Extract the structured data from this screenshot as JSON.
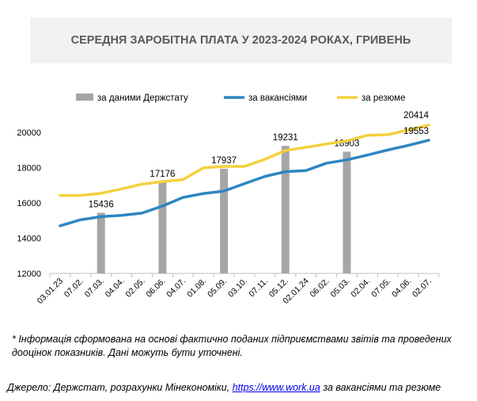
{
  "chart_data": {
    "type": "bar+line",
    "title": "СЕРЕДНЯ ЗАРОБІТНА ПЛАТА У 2023-2024 РОКАХ, ГРИВЕНЬ",
    "categories": [
      "03.01.23",
      "07.02.",
      "07.03.",
      "04.04.",
      "02.05.",
      "06.06.",
      "04.07.",
      "01.08.",
      "05.09.",
      "03.10.",
      "07.11.",
      "05.12.",
      "02.01.24",
      "06.02.",
      "05.03.",
      "02.04.",
      "07.05.",
      "04.06.",
      "02.07."
    ],
    "ylim": [
      12000,
      20000
    ],
    "yticks": [
      12000,
      14000,
      16000,
      18000,
      20000
    ],
    "grid": false,
    "legend": "top",
    "series": [
      {
        "name": "за даними Держстату",
        "type": "bar",
        "color": "#a6a6a6",
        "values": [
          null,
          null,
          15436,
          null,
          null,
          17176,
          null,
          null,
          17937,
          null,
          null,
          19231,
          null,
          null,
          18903,
          null,
          null,
          null,
          null
        ],
        "labels": [
          null,
          null,
          "15436",
          null,
          null,
          "17176",
          null,
          null,
          "17937",
          null,
          null,
          "19231",
          null,
          null,
          "18903",
          null,
          null,
          null,
          null
        ]
      },
      {
        "name": "за вакансіями",
        "type": "line",
        "color": "#2e86c1",
        "values": [
          14700,
          15040,
          15220,
          15290,
          15420,
          15820,
          16310,
          16530,
          16670,
          17090,
          17500,
          17770,
          17830,
          18250,
          18440,
          18710,
          19000,
          19260,
          19553
        ],
        "end_label": "19553"
      },
      {
        "name": "за резюме",
        "type": "line",
        "color": "#f4d03f",
        "values": [
          16420,
          16420,
          16540,
          16790,
          17060,
          17210,
          17320,
          17990,
          18070,
          18070,
          18470,
          18970,
          19150,
          19340,
          19520,
          19830,
          19870,
          20130,
          20414
        ],
        "end_label": "20414"
      }
    ]
  },
  "footnote": "* Інформація сформована на основі фактично поданих підприємствами звітів та проведених дооцінок показників. Дані можуть бути уточнені.",
  "source": {
    "prefix": "Джерело: Держстат, розрахунки Мінекономіки, ",
    "link": "https://www.work.ua",
    "suffix": " за вакансіями та резюме"
  }
}
